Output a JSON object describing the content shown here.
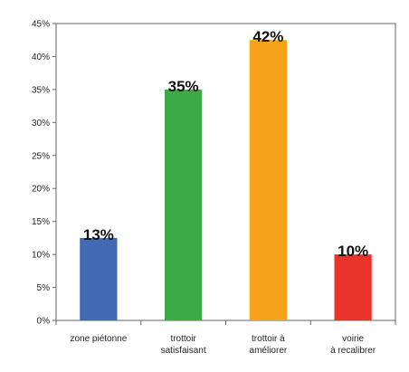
{
  "chart_data": {
    "type": "bar",
    "title": "",
    "xlabel": "",
    "ylabel": "",
    "ylim": [
      0,
      45
    ],
    "y_ticks": [
      "0%",
      "5%",
      "10%",
      "15%",
      "20%",
      "25%",
      "30%",
      "35%",
      "40%",
      "45%"
    ],
    "y_tick_values": [
      0,
      5,
      10,
      15,
      20,
      25,
      30,
      35,
      40,
      45
    ],
    "categories": [
      [
        "zone piétonne"
      ],
      [
        "trottoir",
        "satisfaisant"
      ],
      [
        "trottoir à",
        "améliorer"
      ],
      [
        "voirie",
        "à recalibrer"
      ]
    ],
    "values": [
      12.5,
      35,
      42.5,
      10
    ],
    "data_labels": [
      "13%",
      "35%",
      "42%",
      "10%"
    ],
    "colors": [
      "#4169b4",
      "#3daa48",
      "#f5a31a",
      "#e8342a"
    ],
    "grid": false,
    "legend": "none"
  }
}
